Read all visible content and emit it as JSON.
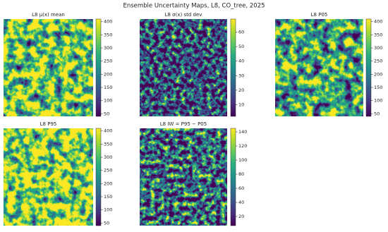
{
  "title": "Ensemble Uncertainty Maps, L8, CO_tree, 2025",
  "chart_data": [
    {
      "type": "heatmap",
      "title": "L8 μ(x) mean",
      "colormap": "viridis",
      "clim": [
        40,
        410
      ],
      "cticks": [
        50,
        100,
        150,
        200,
        250,
        300,
        350,
        400
      ]
    },
    {
      "type": "heatmap",
      "title": "L8 σ(x) std dev",
      "colormap": "viridis",
      "clim": [
        2,
        69
      ],
      "cticks": [
        10,
        20,
        30,
        40,
        50,
        60
      ]
    },
    {
      "type": "heatmap",
      "title": "L8 P05",
      "colormap": "viridis",
      "clim": [
        40,
        410
      ],
      "cticks": [
        50,
        100,
        150,
        200,
        250,
        300,
        350,
        400
      ]
    },
    {
      "type": "heatmap",
      "title": "L8 P95",
      "colormap": "viridis",
      "clim": [
        40,
        410
      ],
      "cticks": [
        50,
        100,
        150,
        200,
        250,
        300,
        350,
        400
      ]
    },
    {
      "type": "heatmap",
      "title": "L8 IW = P95 − P05",
      "colormap": "viridis",
      "clim": [
        7,
        145
      ],
      "cticks": [
        20,
        40,
        60,
        80,
        100,
        120,
        140
      ]
    }
  ]
}
